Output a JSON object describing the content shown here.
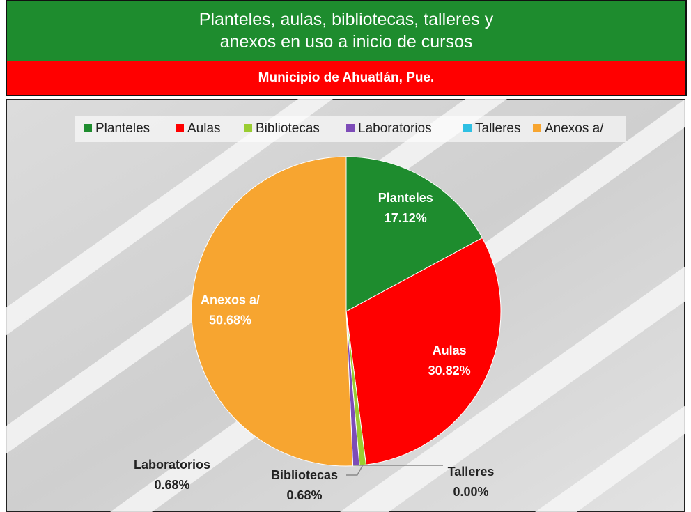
{
  "chart_data": {
    "type": "pie",
    "title": [
      "Planteles, aulas, bibliotecas, talleres y",
      "anexos en uso a inicio de cursos"
    ],
    "subtitle": "Municipio de Ahuatlán, Pue.",
    "categories": [
      "Planteles",
      "Aulas",
      "Bibliotecas",
      "Laboratorios",
      "Talleres",
      "Anexos a/"
    ],
    "values": [
      17.12,
      30.82,
      0.68,
      0.68,
      0.0,
      50.68
    ],
    "value_labels": [
      "17.12%",
      "30.82%",
      "0.68%",
      "0.68%",
      "0.00%",
      "50.68%"
    ],
    "colors": [
      "#1e8c2e",
      "#ff0000",
      "#9acd32",
      "#7d4cb8",
      "#2fc0e3",
      "#f7a530"
    ],
    "legend": "top"
  }
}
